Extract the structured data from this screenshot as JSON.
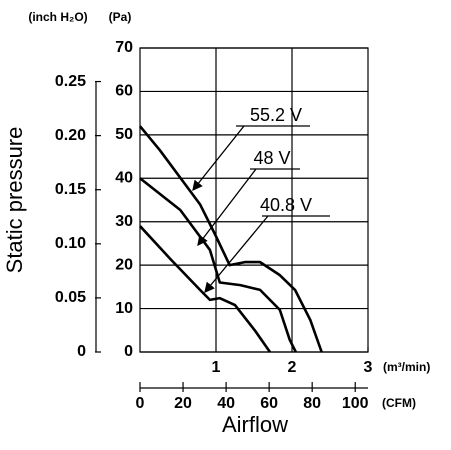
{
  "chart_data": {
    "type": "line",
    "xlabel": "Airflow",
    "ylabel": "Static pressure",
    "x_unit": "(m³/min)",
    "x2_unit": "(CFM)",
    "y_unit": "(Pa)",
    "y2_unit": "(inch H₂O)",
    "xlim": [
      0,
      3
    ],
    "xticks": [
      1,
      2,
      3
    ],
    "x2lim": [
      0,
      105.94
    ],
    "x2ticks": [
      0,
      20,
      40,
      60,
      80,
      100
    ],
    "ylim": [
      0,
      70
    ],
    "yticks": [
      0,
      10,
      20,
      30,
      40,
      50,
      60,
      70
    ],
    "y2lim": [
      0,
      0.281
    ],
    "y2ticks": [
      0,
      0.05,
      {
        "value": 0.1,
        "label": "0.10"
      },
      0.15,
      {
        "value": 0.2,
        "label": "0.20"
      },
      0.25
    ],
    "grid": true,
    "series": [
      {
        "name": "55.2 V",
        "color": "#000000",
        "x": [
          0,
          0.26,
          0.79,
          0.99,
          1.18,
          1.38,
          1.58,
          1.84,
          2.04,
          2.24,
          2.39
        ],
        "values": [
          52,
          46.5,
          34,
          27,
          20,
          20.7,
          20.7,
          17.7,
          14.3,
          7.4,
          0
        ]
      },
      {
        "name": "48 V",
        "color": "#000000",
        "x": [
          0,
          0.53,
          0.92,
          1.05,
          1.32,
          1.58,
          1.84,
          1.97,
          2.05
        ],
        "values": [
          40,
          32.7,
          23.5,
          16,
          15.4,
          14.3,
          9.7,
          2.8,
          0
        ]
      },
      {
        "name": "40.8 V",
        "color": "#000000",
        "x": [
          0,
          0.39,
          0.79,
          0.92,
          1.05,
          1.25,
          1.51,
          1.71
        ],
        "values": [
          29,
          21.6,
          14.3,
          12,
          12.4,
          10.8,
          5,
          0
        ]
      }
    ]
  }
}
